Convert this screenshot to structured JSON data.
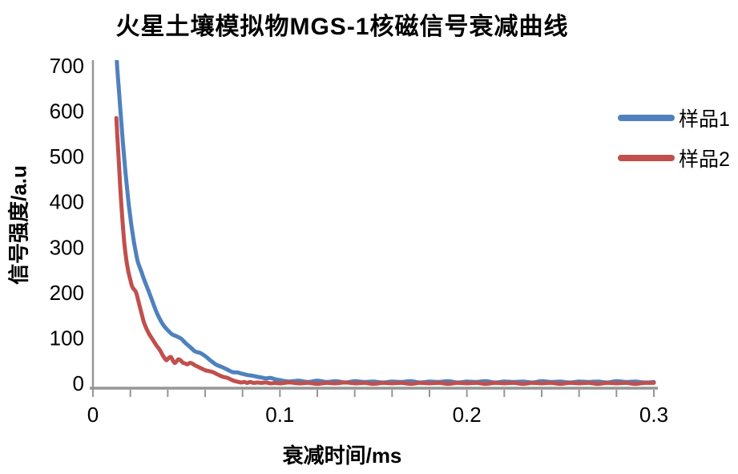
{
  "chart_data": {
    "type": "line",
    "title": "火星土壤模拟物MGS-1核磁信号衰减曲线",
    "xlabel": "衰减时间/ms",
    "ylabel": "信号强度/a.u",
    "xlim": [
      0,
      0.3
    ],
    "ylim": [
      0,
      700
    ],
    "x_tick_values": [
      0,
      0.1,
      0.2,
      0.3
    ],
    "x_tick_labels": [
      "0",
      "0.1",
      "0.2",
      "0.3"
    ],
    "x_minor_tick_interval": 0.02,
    "y_tick_values": [
      0,
      100,
      200,
      300,
      400,
      500,
      600,
      700
    ],
    "y_tick_labels": [
      "0",
      "100",
      "200",
      "300",
      "400",
      "500",
      "600",
      "700"
    ],
    "grid": false,
    "legend_position": "right",
    "axis_color": "#969696",
    "series": [
      {
        "name": "样品1",
        "color": "#4F81BD",
        "points": [
          [
            0.0127,
            718
          ],
          [
            0.013,
            695
          ],
          [
            0.014,
            640
          ],
          [
            0.015,
            585
          ],
          [
            0.016,
            532
          ],
          [
            0.017,
            483
          ],
          [
            0.018,
            440
          ],
          [
            0.019,
            400
          ],
          [
            0.02,
            366
          ],
          [
            0.021,
            336
          ],
          [
            0.022,
            310
          ],
          [
            0.023,
            287
          ],
          [
            0.024,
            268
          ],
          [
            0.025,
            256
          ],
          [
            0.026,
            245
          ],
          [
            0.027,
            233
          ],
          [
            0.028,
            222
          ],
          [
            0.0296,
            205
          ],
          [
            0.0317,
            182
          ],
          [
            0.0339,
            158
          ],
          [
            0.036,
            140
          ],
          [
            0.0381,
            126
          ],
          [
            0.0403,
            116
          ],
          [
            0.0424,
            108
          ],
          [
            0.0446,
            104
          ],
          [
            0.0465,
            100
          ],
          [
            0.0476,
            97
          ],
          [
            0.0497,
            88
          ],
          [
            0.052,
            80
          ],
          [
            0.0544,
            71
          ],
          [
            0.0565,
            68
          ],
          [
            0.0574,
            67
          ],
          [
            0.0604,
            59
          ],
          [
            0.063,
            50
          ],
          [
            0.066,
            41
          ],
          [
            0.069,
            36
          ],
          [
            0.0716,
            31
          ],
          [
            0.0746,
            25
          ],
          [
            0.0775,
            24
          ],
          [
            0.079,
            22
          ],
          [
            0.081,
            20
          ],
          [
            0.083,
            18
          ],
          [
            0.0853,
            17
          ],
          [
            0.0874,
            15
          ],
          [
            0.09,
            13
          ],
          [
            0.0925,
            11
          ],
          [
            0.095,
            12
          ],
          [
            0.0975,
            9
          ],
          [
            0.1,
            7
          ],
          [
            0.105,
            4
          ],
          [
            0.11,
            6
          ],
          [
            0.115,
            3
          ],
          [
            0.12,
            6
          ],
          [
            0.125,
            3
          ],
          [
            0.13,
            5
          ],
          [
            0.135,
            2
          ],
          [
            0.14,
            5
          ],
          [
            0.145,
            3
          ],
          [
            0.15,
            4
          ],
          [
            0.155,
            2
          ],
          [
            0.16,
            4
          ],
          [
            0.165,
            3
          ],
          [
            0.17,
            5
          ],
          [
            0.175,
            2
          ],
          [
            0.18,
            4
          ],
          [
            0.185,
            3
          ],
          [
            0.19,
            5
          ],
          [
            0.195,
            2
          ],
          [
            0.2,
            4
          ],
          [
            0.205,
            3
          ],
          [
            0.21,
            5
          ],
          [
            0.215,
            2
          ],
          [
            0.22,
            4
          ],
          [
            0.225,
            3
          ],
          [
            0.23,
            4
          ],
          [
            0.235,
            2
          ],
          [
            0.24,
            5
          ],
          [
            0.245,
            3
          ],
          [
            0.25,
            4
          ],
          [
            0.255,
            2
          ],
          [
            0.26,
            4
          ],
          [
            0.265,
            3
          ],
          [
            0.27,
            4
          ],
          [
            0.275,
            2
          ],
          [
            0.28,
            5
          ],
          [
            0.285,
            3
          ],
          [
            0.29,
            4
          ],
          [
            0.295,
            2
          ],
          [
            0.3,
            3
          ]
        ]
      },
      {
        "name": "样品2",
        "color": "#C0504D",
        "points": [
          [
            0.0125,
            585
          ],
          [
            0.013,
            548
          ],
          [
            0.0135,
            512
          ],
          [
            0.014,
            476
          ],
          [
            0.0145,
            440
          ],
          [
            0.015,
            405
          ],
          [
            0.0155,
            375
          ],
          [
            0.016,
            348
          ],
          [
            0.0165,
            322
          ],
          [
            0.017,
            300
          ],
          [
            0.018,
            268
          ],
          [
            0.019,
            245
          ],
          [
            0.02,
            228
          ],
          [
            0.021,
            213
          ],
          [
            0.022,
            207
          ],
          [
            0.0231,
            200
          ],
          [
            0.0245,
            178
          ],
          [
            0.026,
            154
          ],
          [
            0.0274,
            133
          ],
          [
            0.0296,
            112
          ],
          [
            0.0317,
            98
          ],
          [
            0.0339,
            84
          ],
          [
            0.036,
            72
          ],
          [
            0.0373,
            62
          ],
          [
            0.0386,
            54
          ],
          [
            0.0394,
            51
          ],
          [
            0.0406,
            56
          ],
          [
            0.0417,
            58
          ],
          [
            0.0428,
            50
          ],
          [
            0.0437,
            45
          ],
          [
            0.0446,
            48
          ],
          [
            0.0457,
            53
          ],
          [
            0.0468,
            51
          ],
          [
            0.048,
            46
          ],
          [
            0.0492,
            44
          ],
          [
            0.0505,
            42
          ],
          [
            0.0518,
            45
          ],
          [
            0.053,
            44
          ],
          [
            0.0545,
            40
          ],
          [
            0.056,
            37
          ],
          [
            0.058,
            33
          ],
          [
            0.06,
            29
          ],
          [
            0.062,
            27
          ],
          [
            0.064,
            25
          ],
          [
            0.066,
            21
          ],
          [
            0.068,
            17
          ],
          [
            0.07,
            14
          ],
          [
            0.072,
            12
          ],
          [
            0.074,
            8
          ],
          [
            0.076,
            5
          ],
          [
            0.078,
            3
          ],
          [
            0.0795,
            2
          ],
          [
            0.081,
            3
          ],
          [
            0.0825,
            1
          ],
          [
            0.084,
            3
          ],
          [
            0.086,
            1
          ],
          [
            0.088,
            2
          ],
          [
            0.09,
            1
          ],
          [
            0.0925,
            2
          ],
          [
            0.095,
            0
          ],
          [
            0.0975,
            1
          ],
          [
            0.1,
            0
          ],
          [
            0.105,
            2
          ],
          [
            0.11,
            0
          ],
          [
            0.115,
            1
          ],
          [
            0.12,
            -1
          ],
          [
            0.125,
            1
          ],
          [
            0.13,
            0
          ],
          [
            0.135,
            2
          ],
          [
            0.14,
            0
          ],
          [
            0.145,
            1
          ],
          [
            0.15,
            -1
          ],
          [
            0.155,
            1
          ],
          [
            0.16,
            0
          ],
          [
            0.165,
            1
          ],
          [
            0.17,
            -1
          ],
          [
            0.175,
            1
          ],
          [
            0.18,
            0
          ],
          [
            0.185,
            1
          ],
          [
            0.19,
            -1
          ],
          [
            0.195,
            1
          ],
          [
            0.2,
            0
          ],
          [
            0.205,
            1
          ],
          [
            0.21,
            -1
          ],
          [
            0.215,
            1
          ],
          [
            0.22,
            0
          ],
          [
            0.225,
            1
          ],
          [
            0.23,
            -1
          ],
          [
            0.235,
            1
          ],
          [
            0.24,
            0
          ],
          [
            0.245,
            1
          ],
          [
            0.25,
            -1
          ],
          [
            0.255,
            1
          ],
          [
            0.26,
            0
          ],
          [
            0.265,
            1
          ],
          [
            0.27,
            -1
          ],
          [
            0.275,
            1
          ],
          [
            0.28,
            0
          ],
          [
            0.285,
            1
          ],
          [
            0.29,
            -1
          ],
          [
            0.295,
            1
          ],
          [
            0.3,
            1
          ]
        ]
      }
    ]
  }
}
